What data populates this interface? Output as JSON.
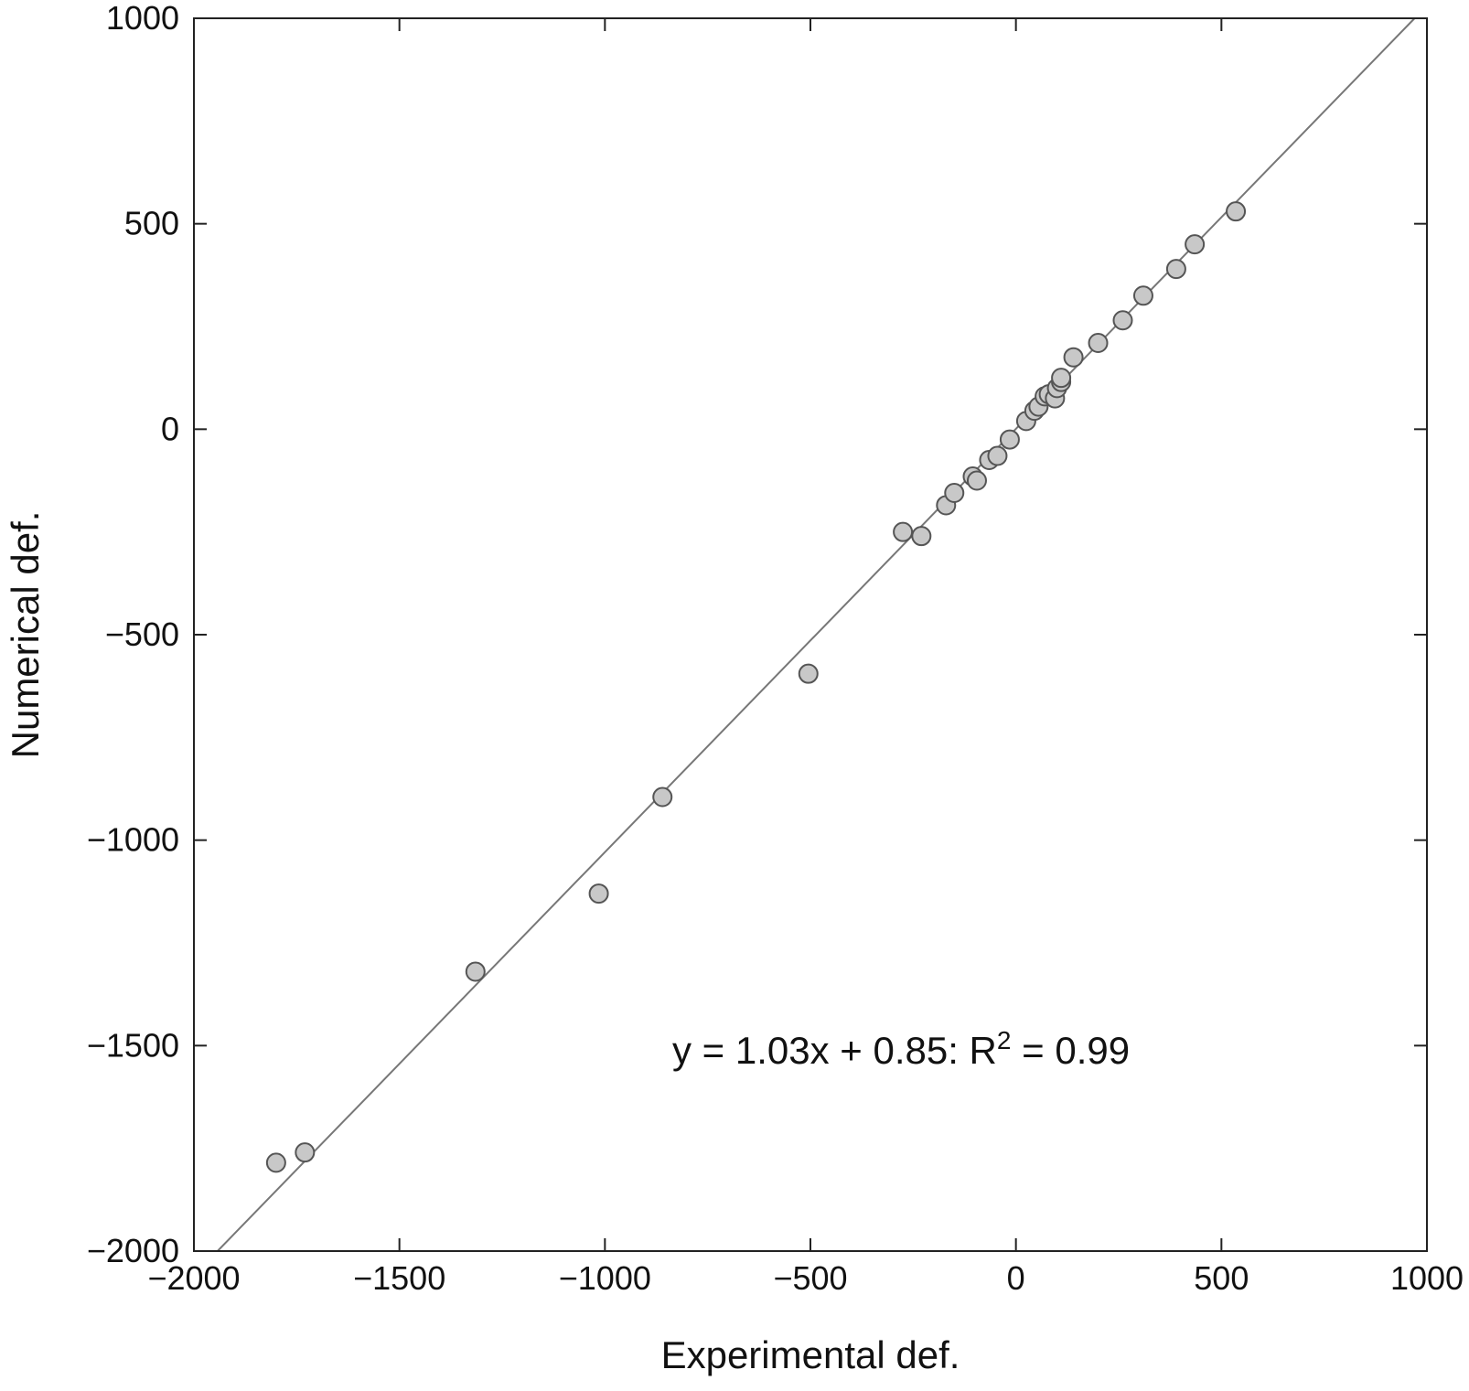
{
  "chart_data": {
    "type": "scatter",
    "xlabel": "Experimental def.",
    "ylabel": "Numerical def.",
    "xlim": [
      -2000,
      1000
    ],
    "ylim": [
      -2000,
      1000
    ],
    "x_ticks": [
      -2000,
      -1500,
      -1000,
      -500,
      0,
      500,
      1000
    ],
    "y_ticks": [
      -2000,
      -1500,
      -1000,
      -500,
      0,
      500,
      1000
    ],
    "x_tick_labels": [
      "−2000",
      "−1500",
      "−1000",
      "−500",
      "0",
      "500",
      "1000"
    ],
    "y_tick_labels": [
      "−2000",
      "−1500",
      "−1000",
      "−500",
      "0",
      "500",
      "1000"
    ],
    "grid": false,
    "series": [
      {
        "points": [
          {
            "x": -1800,
            "y": -1785
          },
          {
            "x": -1730,
            "y": -1760
          },
          {
            "x": -1315,
            "y": -1320
          },
          {
            "x": -1015,
            "y": -1130
          },
          {
            "x": -860,
            "y": -895
          },
          {
            "x": -505,
            "y": -595
          },
          {
            "x": -275,
            "y": -250
          },
          {
            "x": -230,
            "y": -260
          },
          {
            "x": -170,
            "y": -185
          },
          {
            "x": -150,
            "y": -155
          },
          {
            "x": -105,
            "y": -115
          },
          {
            "x": -95,
            "y": -125
          },
          {
            "x": -65,
            "y": -75
          },
          {
            "x": -45,
            "y": -65
          },
          {
            "x": -15,
            "y": -25
          },
          {
            "x": 25,
            "y": 20
          },
          {
            "x": 45,
            "y": 45
          },
          {
            "x": 55,
            "y": 55
          },
          {
            "x": 70,
            "y": 80
          },
          {
            "x": 80,
            "y": 85
          },
          {
            "x": 95,
            "y": 75
          },
          {
            "x": 100,
            "y": 100
          },
          {
            "x": 110,
            "y": 115
          },
          {
            "x": 110,
            "y": 125
          },
          {
            "x": 140,
            "y": 175
          },
          {
            "x": 200,
            "y": 210
          },
          {
            "x": 260,
            "y": 265
          },
          {
            "x": 310,
            "y": 325
          },
          {
            "x": 390,
            "y": 390
          },
          {
            "x": 435,
            "y": 450
          },
          {
            "x": 535,
            "y": 530
          }
        ]
      }
    ],
    "fit_line": {
      "slope": 1.03,
      "intercept": 0.85
    },
    "annotation": {
      "prefix": "y = 1.03x + 0.85: R",
      "superscript": "2",
      "suffix": " = 0.99"
    },
    "colors": {
      "marker_fill": "#c8c8c8",
      "marker_stroke": "#555555",
      "line": "#777777",
      "axis": "#222222"
    }
  }
}
